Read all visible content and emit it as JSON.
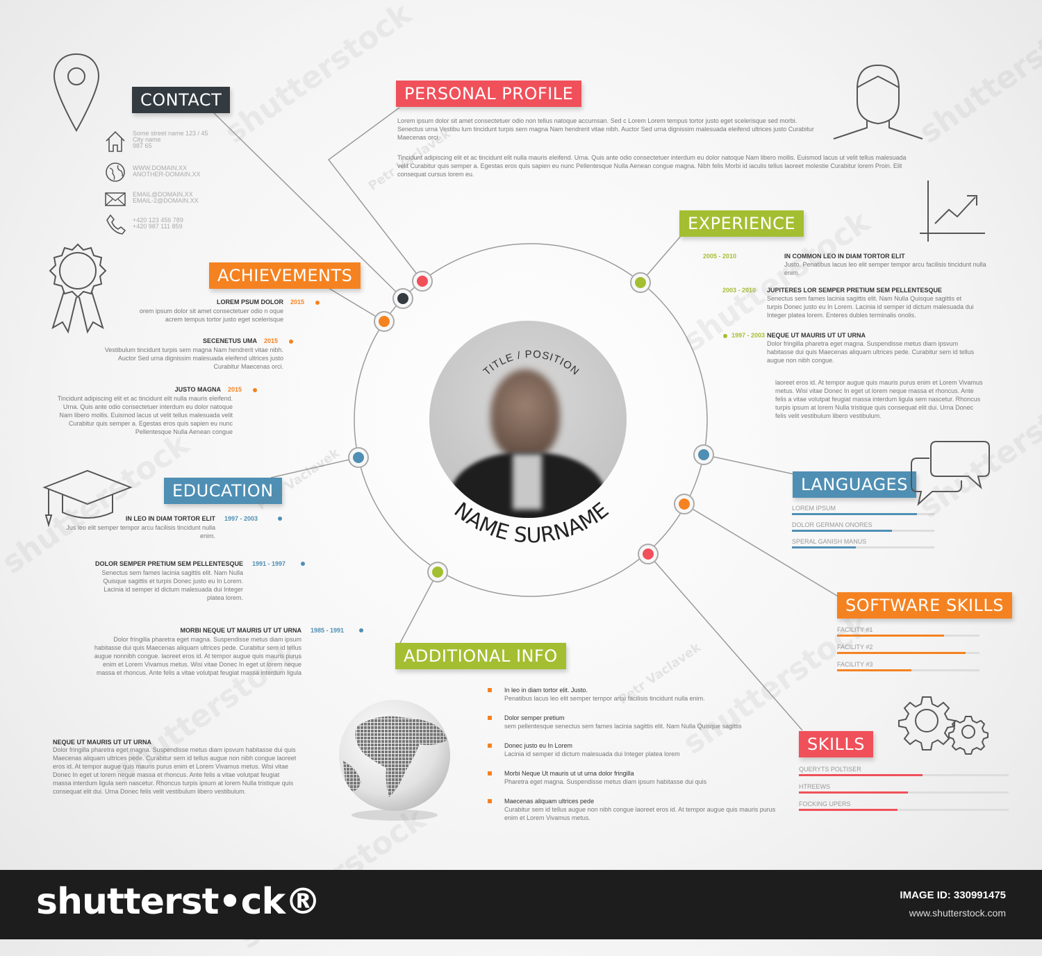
{
  "colors": {
    "red": "#f0505a",
    "orange": "#f58220",
    "green": "#a4be32",
    "blue": "#4f8fb4",
    "dark": "#333a40",
    "line": "#9a9a9a"
  },
  "contact": {
    "title": "CONTACT",
    "address": [
      "Some street name 123 / 45",
      "City name",
      "987 65"
    ],
    "web": [
      "WWW.DOMAIN.XX",
      "ANOTHER-DOMAIN.XX"
    ],
    "email": [
      "EMAIL@DOMAIN.XX",
      "EMAIL-2@DOMAIN.XX"
    ],
    "phone": [
      "+420 123 456 789",
      "+420 987 111 859"
    ]
  },
  "profile": {
    "title": "PERSONAL PROFILE",
    "p1": "Lorem ipsum dolor sit amet consectetuer odio non tellus natoque accumsan. Sed c Lorem Lorem tempus tortor justo eget scelerisque sed morbi. Senectus urna Vestibu lum tincidunt turpis sem magna Nam hendrerit vitae nibh. Auctor Sed urna dignissim malesuada eleifend ultrices justo Curabitur Maecenas orci.",
    "p2": "Tincidunt adipiscing elit et ac tincidunt elit nulla mauris eleifend. Urna. Quis ante odio consectetuer interdum eu dolor natoque Nam libero mollis. Euismod lacus ut velit tellus malesuada velit Curabitur quis semper a. Egestas eros quis sapien eu nunc Pellentesque Nulla Aenean congue magna. Nibh felis Morbi id iaculis tellus laoreet molestie Curabitur lorem Proin. Elit consequat cursus lorem eu."
  },
  "experience": {
    "title": "EXPERIENCE",
    "items": [
      {
        "years": "2005 - 2010",
        "head": "IN COMMON  LEO IN DIAM TORTOR ELIT",
        "text": "Justo. Penatibus lacus leo elit semper tempor arcu facilisis tincidunt nulla enim."
      },
      {
        "years": "2003 - 2010",
        "head": "JUPITERES LOR SEMPER PRETIUM SEM PELLENTESQUE",
        "text": "Senectus sem fames lacinia sagittis elit. Nam Nulla Quisque sagittis et turpis Donec justo eu In Lorem. Lacinia id semper id dictum malesuada dui Integer platea lorem. Enteres dubles terminalis onolis."
      },
      {
        "years": "1997 - 2003",
        "head": "NEQUE UT MAURIS UT UT URNA",
        "text": "Dolor fringilla pharetra eget magna. Suspendisse metus diam ipsvum habitasse dui quis Maecenas aliquam ultrices pede. Curabitur sem id tellus augue non nibh congue."
      }
    ],
    "extra": "laoreet eros id. At tempor augue quis mauris purus enim et Lorem Vivamus metus. Wisi vitae Donec In eget ut lorem neque massa et rhoncus. Ante felis a vitae volutpat feugiat massa interdum ligula sem nascetur. Rhoncus turpis ipsum at lorem Nulla tristique quis consequat elit dui. Urna Donec felis velit vestibulum libero vestibulum."
  },
  "achievements": {
    "title": "ACHIEVEMENTS",
    "items": [
      {
        "head": "LOREM PSUM DOLOR",
        "year": "2015",
        "text": "orem ipsum dolor sit amet consectetuer odio n oque acrem tempus tortor justo eget scelerisque"
      },
      {
        "head": "SECENETUS UMA",
        "year": "2015",
        "text": "Vestibulum tincidunt turpis sem magna Nam hendrerit vitae nibh. Auctor Sed urna dignissim malesuada eleifend ultrices justo Curabitur Maecenas orci."
      },
      {
        "head": "JUSTO MAGNA",
        "year": "2015",
        "text": "Tincidunt adipiscing elit et ac tincidunt elit nulla mauris eleifend. Urna. Quis ante odio consectetuer interdum eu dolor natoque Nam libero mollis. Euismod lacus ut velit tellus malesuada velit Curabitur quis semper a. Egestas eros quis sapien eu nunc Pellentesque Nulla Aenean congue"
      }
    ]
  },
  "center": {
    "title": "TITLE / POSITION",
    "name": "NAME SURNAME"
  },
  "education": {
    "title": "EDUCATION",
    "items": [
      {
        "head": "IN LEO IN DIAM TORTOR ELIT",
        "years": "1997 - 2003",
        "text": "Jus leo elit semper tempor arcu facilisis tincidunt nulla enim."
      },
      {
        "head": "DOLOR SEMPER PRETIUM SEM PELLENTESQUE",
        "years": "1991 - 1997",
        "text": "Senectus sem fames lacinia sagittis elit. Nam Nulla Quisque sagittis et turpis Donec justo eu In Lorem. Lacinia id semper id dictum malesuada dui Integer platea lorem."
      },
      {
        "head": "MORBI NEQUE UT MAURIS UT UT URNA",
        "years": "1985 - 1991",
        "text": "Dolor fringilla pharetra eget magna. Suspendisse metus diam ipsum habitasse dui quis Maecenas aliquam ultrices pede. Curabitur sem id tellus augue nonnibh congue. laoreet eros id. At tempor augue quis mauris purus enim et Lorem Vivamus metus. Wisi vitae Donec In eget ut lorem neque massa et rhoncus. Ante felis a vitae volutpat feugiat massa interdum ligula"
      }
    ]
  },
  "neque": {
    "head": "NEQUE UT MAURIS UT UT URNA",
    "text": "Dolor fringilla pharetra eget magna. Suspendisse metus diam ipsvum habitasse dui quis Maecenas aliquam ultrices pede. Curabitur sem id tellus augue non nibh congue laoreet eros id. At tempor augue quis mauris purus enim et Lorem Vivamus metus. Wisi vitae Donec In eget ut lorem neque massa et rhoncus. Ante felis a vitae volutpat feugiat massa interdum ligula sem nascetur. Rhoncus turpis ipsum at lorem Nulla tristique quis consequat elit dui. Urna Donec felis velit vestibulum libero vestibulum."
  },
  "additional": {
    "title": "ADDITIONAL INFO",
    "items": [
      {
        "head": "In leo in diam tortor elit. Justo.",
        "text": "Penatibus lacus leo elit semper tempor arcu facilisis tincidunt nulla enim."
      },
      {
        "head": "Dolor semper pretium",
        "text": "sem pellentesque senectus sem fames lacinia sagittis elit. Nam Nulla Quisque sagittis"
      },
      {
        "head": "Donec justo eu In Lorem",
        "text": "Lacinia id semper id dictum malesuada dui Integer platea lorem"
      },
      {
        "head": "Morbi Neque Ut mauris ut ut urna dolor fringilla",
        "text": "Pharetra eget magna. Suspendisse metus diam ipsum habitasse dui quis"
      },
      {
        "head": "Maecenas aliquam ultrices pede",
        "text": "Curabitur sem id tellus augue non nibh congue laoreet eros id. At tempor augue quis mauris purus enim et Lorem Vivamus metus."
      }
    ]
  },
  "languages": {
    "title": "LANGUAGES",
    "items": [
      {
        "label": "LOREM IPSUM",
        "level": 0.88
      },
      {
        "label": "DOLOR GERMAN ONORES",
        "level": 0.7
      },
      {
        "label": "SPERAL GANISH MANUS",
        "level": 0.45
      }
    ]
  },
  "software": {
    "title": "SOFTWARE SKILLS",
    "items": [
      {
        "label": "FACILITY #1",
        "level": 0.75
      },
      {
        "label": "FACILITY #2",
        "level": 0.9
      },
      {
        "label": "FACILITY #3",
        "level": 0.52
      }
    ]
  },
  "skills": {
    "title": "SKILLS",
    "items": [
      {
        "label": "QUERYTS POLTISER",
        "level": 0.59
      },
      {
        "label": "HTREEWS",
        "level": 0.52
      },
      {
        "label": "FOCKING UPERS",
        "level": 0.47
      }
    ]
  },
  "footer": {
    "brand": "shutterst•ck®",
    "image_id": "IMAGE ID: 330991475",
    "site": "www.shutterstock.com"
  },
  "watermarks": [
    "shutterstock",
    "shutterstock",
    "shutterstock",
    "shutterstock",
    "shutterstock",
    "shutterstock",
    "shutterstock",
    "shutterstock",
    "Petr Vaclavek",
    "Petr Vaclavek",
    "Petr Vaclavek"
  ],
  "icons": [
    "location-pin-icon",
    "house-icon",
    "globe-small-icon",
    "envelope-icon",
    "phone-icon",
    "award-rosette-icon",
    "graduation-cap-icon",
    "globe-icon",
    "person-icon",
    "chart-icon",
    "speech-bubbles-icon",
    "gears-icon"
  ]
}
